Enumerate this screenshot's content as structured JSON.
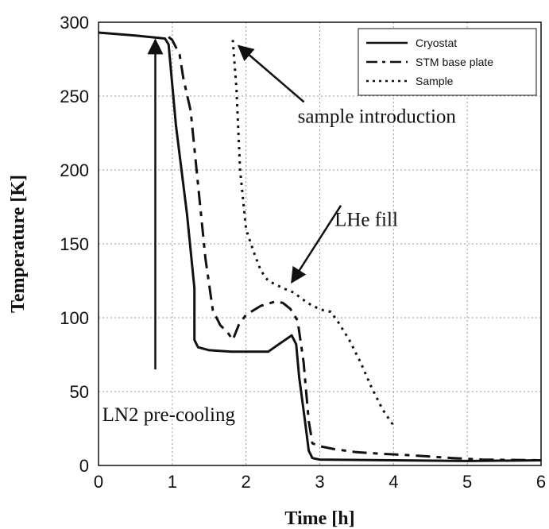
{
  "chart_data": {
    "type": "line",
    "xlabel": "Time [h]",
    "ylabel": "Temperature [K]",
    "xlim": [
      0,
      6
    ],
    "ylim": [
      0,
      300
    ],
    "xticks": [
      0,
      1,
      2,
      3,
      4,
      5,
      6
    ],
    "yticks": [
      0,
      50,
      100,
      150,
      200,
      250,
      300
    ],
    "grid": true,
    "legend_position": "top-right",
    "series": [
      {
        "name": "Cryostat",
        "style": "solid",
        "x": [
          0,
          0.5,
          0.9,
          0.95,
          1.05,
          1.2,
          1.3,
          1.3,
          1.35,
          1.5,
          1.8,
          2.0,
          2.3,
          2.5,
          2.62,
          2.68,
          2.72,
          2.8,
          2.85,
          2.9,
          3.0,
          4.0,
          5.0,
          6.0
        ],
        "y": [
          293,
          291,
          289,
          285,
          230,
          170,
          120,
          85,
          80,
          78,
          77,
          77,
          77,
          84,
          88,
          82,
          60,
          30,
          10,
          5,
          4,
          3.5,
          3,
          3.5
        ]
      },
      {
        "name": "STM base plate",
        "style": "dashed",
        "x": [
          0.95,
          1.0,
          1.1,
          1.15,
          1.25,
          1.35,
          1.45,
          1.55,
          1.65,
          1.75,
          1.82,
          1.9,
          2.0,
          2.2,
          2.4,
          2.5,
          2.6,
          2.7,
          2.78,
          2.85,
          2.9,
          3.0,
          3.2,
          3.5,
          3.8,
          4.2,
          4.5,
          4.8,
          5.2,
          6.0
        ],
        "y": [
          290,
          288,
          278,
          262,
          240,
          190,
          140,
          105,
          95,
          90,
          85,
          95,
          102,
          108,
          111,
          110,
          106,
          98,
          70,
          30,
          15,
          13,
          11,
          9,
          8,
          7,
          6,
          5,
          4,
          3.5
        ]
      },
      {
        "name": "Sample",
        "style": "dotted",
        "x": [
          1.82,
          1.87,
          1.92,
          2.0,
          2.1,
          2.2,
          2.3,
          2.5,
          2.65,
          2.75,
          2.9,
          3.05,
          3.15,
          3.25,
          3.4,
          3.55,
          3.7,
          3.85,
          4.0
        ],
        "y": [
          288,
          255,
          200,
          160,
          145,
          132,
          125,
          120,
          117,
          113,
          108,
          105,
          104,
          97,
          85,
          70,
          53,
          38,
          27
        ]
      }
    ],
    "annotations": [
      {
        "text": "sample introduction",
        "text_x": 2.7,
        "text_y": 232,
        "arrow_to_x": 1.9,
        "arrow_to_y": 284
      },
      {
        "text": "LHe fill",
        "text_x": 3.2,
        "text_y": 162,
        "arrow_to_x": 2.62,
        "arrow_to_y": 124
      },
      {
        "text": "LN2 pre-cooling",
        "text_x": 0.05,
        "text_y": 30,
        "arrow_from_x": 0.77,
        "arrow_from_y": 65,
        "arrow_to_x": 0.77,
        "arrow_to_y": 288
      }
    ]
  }
}
